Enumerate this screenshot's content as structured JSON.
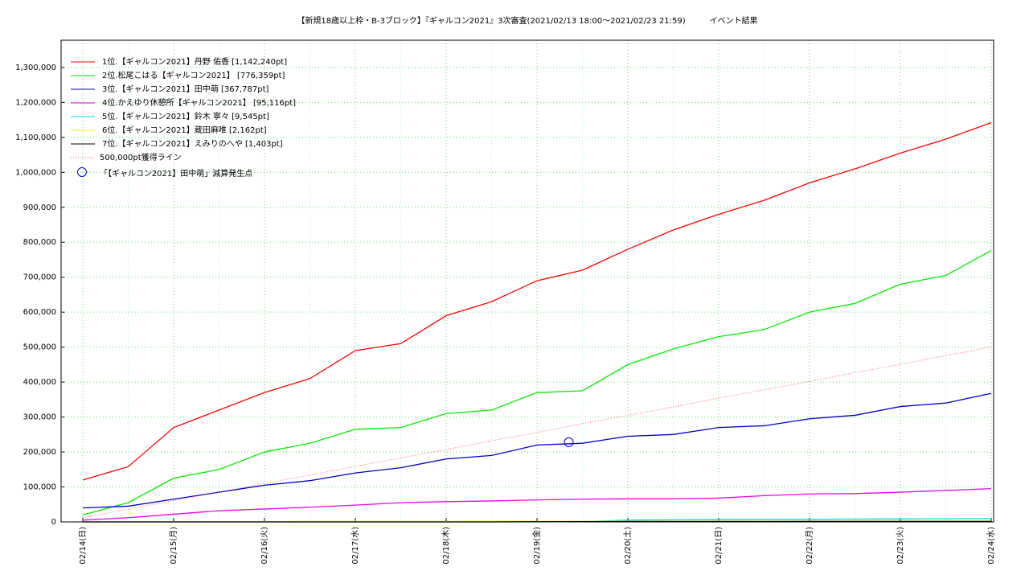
{
  "chart_data": {
    "type": "line",
    "title": "【新規18歳以上枠・B-3ブロック】『ギャルコン2021』3次審査(2021/02/13 18:00～2021/02/23 21:59)　　　イベント結果",
    "categories": [
      "02/14(日)",
      null,
      "02/15(月)",
      null,
      "02/16(火)",
      null,
      "02/17(水)",
      null,
      "02/18(木)",
      null,
      "02/19(金)",
      null,
      "02/20(土)",
      null,
      "02/21(日)",
      null,
      "02/22(月)",
      null,
      "02/23(火)",
      null,
      "02/24(水)"
    ],
    "series": [
      {
        "name": "1位.【ギャルコン2021】丹野 佑香 [1,142,240pt]",
        "color": "#ff0000",
        "values": [
          120000,
          158000,
          270000,
          320000,
          370000,
          410000,
          490000,
          510000,
          590000,
          630000,
          690000,
          720000,
          780000,
          835000,
          880000,
          920000,
          970000,
          1010000,
          1055000,
          1095000,
          1142240
        ]
      },
      {
        "name": "2位.松尾こはる【ギャルコン2021】 [776,359pt]",
        "color": "#00ee00",
        "values": [
          20000,
          55000,
          125000,
          150000,
          200000,
          225000,
          265000,
          270000,
          310000,
          320000,
          370000,
          375000,
          450000,
          495000,
          530000,
          550000,
          600000,
          625000,
          680000,
          705000,
          776359
        ]
      },
      {
        "name": "3位.【ギャルコン2021】田中萌 [367,787pt]",
        "color": "#0000cc",
        "values": [
          40000,
          45000,
          65000,
          85000,
          105000,
          118000,
          140000,
          155000,
          180000,
          190000,
          220000,
          225000,
          245000,
          250000,
          270000,
          275000,
          295000,
          305000,
          330000,
          340000,
          367787
        ]
      },
      {
        "name": "4位.かえゆり休憩所【ギャルコン2021】 [95,116pt]",
        "color": "#ee00ee",
        "values": [
          5000,
          12000,
          22000,
          32000,
          37000,
          42000,
          48000,
          55000,
          58000,
          60000,
          63000,
          65000,
          66000,
          66000,
          68000,
          75000,
          80000,
          81000,
          85000,
          90000,
          95116
        ]
      },
      {
        "name": "5位.【ギャルコン2021】鈴木 寧々 [9,545pt]",
        "color": "#00dddd",
        "values": [
          0,
          0,
          0,
          0,
          0,
          0,
          0,
          0,
          0,
          0,
          0,
          1000,
          5000,
          6000,
          6500,
          7000,
          7500,
          8000,
          8500,
          9000,
          9545
        ]
      },
      {
        "name": "6位.【ギャルコン2021】蔵田麻唯 [2,162pt]",
        "color": "#eeee00",
        "values": [
          500,
          800,
          1000,
          1100,
          1200,
          1300,
          1400,
          1500,
          1500,
          1600,
          1700,
          1800,
          1800,
          1900,
          1900,
          2000,
          2000,
          2100,
          2100,
          2150,
          2162
        ]
      },
      {
        "name": "7位.【ギャルコン2021】えみりのへや [1,403pt]",
        "color": "#000000",
        "values": [
          0,
          0,
          0,
          0,
          0,
          0,
          0,
          0,
          0,
          0,
          500,
          800,
          1000,
          1100,
          1200,
          1200,
          1300,
          1300,
          1350,
          1400,
          1403
        ]
      },
      {
        "name": "500,000pt獲得ライン",
        "color": "#ff6666",
        "dashed": true,
        "values": [
          12000,
          36000,
          61000,
          85000,
          110000,
          134000,
          159000,
          183000,
          207000,
          232000,
          256000,
          281000,
          305000,
          329000,
          354000,
          378000,
          402000,
          427000,
          451000,
          476000,
          500000
        ]
      }
    ],
    "marker": {
      "name": "「【ギャルコン2021】田中萌」減算発生点",
      "color": "#0000cc",
      "x": 10.7,
      "value": 228000
    },
    "ylim": [
      0,
      1378000
    ],
    "yticks": [
      0,
      {
        "value": 100000,
        "label": "100,000"
      },
      {
        "value": 200000,
        "label": "200,000"
      },
      {
        "value": 300000,
        "label": "300,000"
      },
      {
        "value": 400000,
        "label": "400,000"
      },
      {
        "value": 500000,
        "label": "500,000"
      },
      {
        "value": 600000,
        "label": "600,000"
      },
      {
        "value": 700000,
        "label": "700,000"
      },
      {
        "value": 800000,
        "label": "800,000"
      },
      {
        "value": 900000,
        "label": "900,000"
      },
      {
        "value": 1000000,
        "label": "1,000,000"
      },
      {
        "value": 1100000,
        "label": "1,100,000"
      },
      {
        "value": 1200000,
        "label": "1,200,000"
      },
      {
        "value": 1300000,
        "label": "1,300,000"
      }
    ],
    "grid": true
  }
}
